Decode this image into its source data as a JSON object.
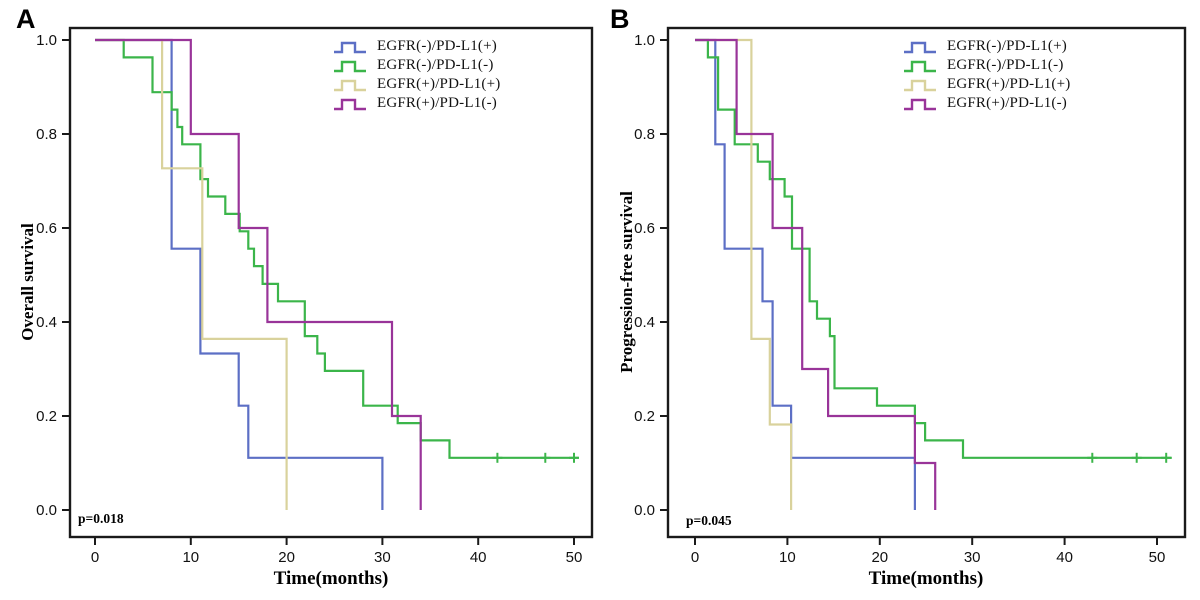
{
  "figure": {
    "background": "#ffffff",
    "axis_color": "#1a1a1a"
  },
  "chart_data": {
    "type": "line",
    "subtype": "kaplan-meier-step",
    "grid": false,
    "legend_position": "top-right-inside",
    "legend": [
      {
        "label": "EGFR(-)/PD-L1(+)",
        "color": "#5c6fc5"
      },
      {
        "label": "EGFR(-)/PD-L1(-)",
        "color": "#3bb54a"
      },
      {
        "label": "EGFR(+)/PD-L1(+)",
        "color": "#d9d29c"
      },
      {
        "label": "EGFR(+)/PD-L1(-)",
        "color": "#993499"
      }
    ],
    "panels": [
      {
        "panel_label": "A",
        "ylabel": "Overall survival",
        "xlabel": "Time(months)",
        "p_value": "p=0.018",
        "xticks": [
          0,
          10,
          20,
          30,
          40,
          50
        ],
        "yticks": [
          "0.0",
          "0.2",
          "0.4",
          "0.6",
          "0.8",
          "1.0"
        ],
        "xlim": [
          0,
          52
        ],
        "ylim": [
          0,
          1.0
        ],
        "series": [
          {
            "name": "EGFR(-)/PD-L1(+)",
            "color": "#5c6fc5",
            "steps": [
              [
                0,
                1
              ],
              [
                8,
                0.556
              ],
              [
                11,
                0.333
              ],
              [
                15,
                0.222
              ],
              [
                16,
                0.111
              ],
              [
                30,
                0
              ]
            ],
            "censors": [],
            "tail_end": null
          },
          {
            "name": "EGFR(-)/PD-L1(-)",
            "color": "#3bb54a",
            "steps": [
              [
                0,
                1
              ],
              [
                3,
                0.963
              ],
              [
                6,
                0.889
              ],
              [
                8,
                0.852
              ],
              [
                8.6,
                0.815
              ],
              [
                9.1,
                0.778
              ],
              [
                11,
                0.704
              ],
              [
                11.8,
                0.667
              ],
              [
                13.6,
                0.63
              ],
              [
                15.1,
                0.593
              ],
              [
                16,
                0.556
              ],
              [
                16.6,
                0.519
              ],
              [
                17.5,
                0.481
              ],
              [
                19.1,
                0.444
              ],
              [
                21.9,
                0.37
              ],
              [
                23.2,
                0.333
              ],
              [
                24,
                0.296
              ],
              [
                28,
                0.222
              ],
              [
                31.6,
                0.185
              ],
              [
                34,
                0.148
              ],
              [
                37,
                0.111
              ]
            ],
            "censors": [
              [
                42,
                0.111
              ],
              [
                47,
                0.111
              ],
              [
                50,
                0.111
              ]
            ],
            "tail_end": 50.5
          },
          {
            "name": "EGFR(+)/PD-L1(+)",
            "color": "#d9d29c",
            "steps": [
              [
                0,
                1
              ],
              [
                7,
                0.727
              ],
              [
                11.2,
                0.364
              ],
              [
                20,
                0
              ]
            ],
            "censors": [],
            "tail_end": null
          },
          {
            "name": "EGFR(+)/PD-L1(-)",
            "color": "#993499",
            "steps": [
              [
                0,
                1
              ],
              [
                10,
                0.8
              ],
              [
                15,
                0.6
              ],
              [
                18,
                0.4
              ],
              [
                31,
                0.2
              ],
              [
                34,
                0
              ]
            ],
            "censors": [],
            "tail_end": null
          }
        ]
      },
      {
        "panel_label": "B",
        "ylabel": "Progression-free survival",
        "xlabel": "Time(months)",
        "p_value": "p=0.045",
        "xticks": [
          0,
          10,
          20,
          30,
          40,
          50
        ],
        "yticks": [
          "0.0",
          "0.2",
          "0.4",
          "0.6",
          "0.8",
          "1.0"
        ],
        "xlim": [
          0,
          52
        ],
        "ylim": [
          0,
          1.0
        ],
        "series": [
          {
            "name": "EGFR(-)/PD-L1(+)",
            "color": "#5c6fc5",
            "steps": [
              [
                0,
                1
              ],
              [
                2.2,
                0.778
              ],
              [
                3.2,
                0.556
              ],
              [
                7.3,
                0.444
              ],
              [
                8.4,
                0.222
              ],
              [
                10.4,
                0.111
              ],
              [
                23.8,
                0
              ]
            ],
            "censors": [],
            "tail_end": null
          },
          {
            "name": "EGFR(-)/PD-L1(-)",
            "color": "#3bb54a",
            "steps": [
              [
                0,
                1
              ],
              [
                1.4,
                0.963
              ],
              [
                2.5,
                0.852
              ],
              [
                4.3,
                0.778
              ],
              [
                6.8,
                0.741
              ],
              [
                8.1,
                0.704
              ],
              [
                9.7,
                0.667
              ],
              [
                10.5,
                0.556
              ],
              [
                12.4,
                0.444
              ],
              [
                13.2,
                0.407
              ],
              [
                14.6,
                0.37
              ],
              [
                15.1,
                0.259
              ],
              [
                19.7,
                0.222
              ],
              [
                23.8,
                0.185
              ],
              [
                24.9,
                0.148
              ],
              [
                29,
                0.111
              ]
            ],
            "censors": [
              [
                43,
                0.111
              ],
              [
                47.8,
                0.111
              ],
              [
                51,
                0.111
              ]
            ],
            "tail_end": 51.6
          },
          {
            "name": "EGFR(+)/PD-L1(+)",
            "color": "#d9d29c",
            "steps": [
              [
                0,
                1
              ],
              [
                6.1,
                0.364
              ],
              [
                8.1,
                0.182
              ],
              [
                10.4,
                0
              ]
            ],
            "censors": [],
            "tail_end": null
          },
          {
            "name": "EGFR(+)/PD-L1(-)",
            "color": "#993499",
            "steps": [
              [
                0,
                1
              ],
              [
                4.5,
                0.8
              ],
              [
                8.4,
                0.6
              ],
              [
                11.6,
                0.3
              ],
              [
                14.4,
                0.2
              ],
              [
                23.8,
                0.1
              ],
              [
                26,
                0
              ]
            ],
            "censors": [],
            "tail_end": null
          }
        ]
      }
    ]
  }
}
